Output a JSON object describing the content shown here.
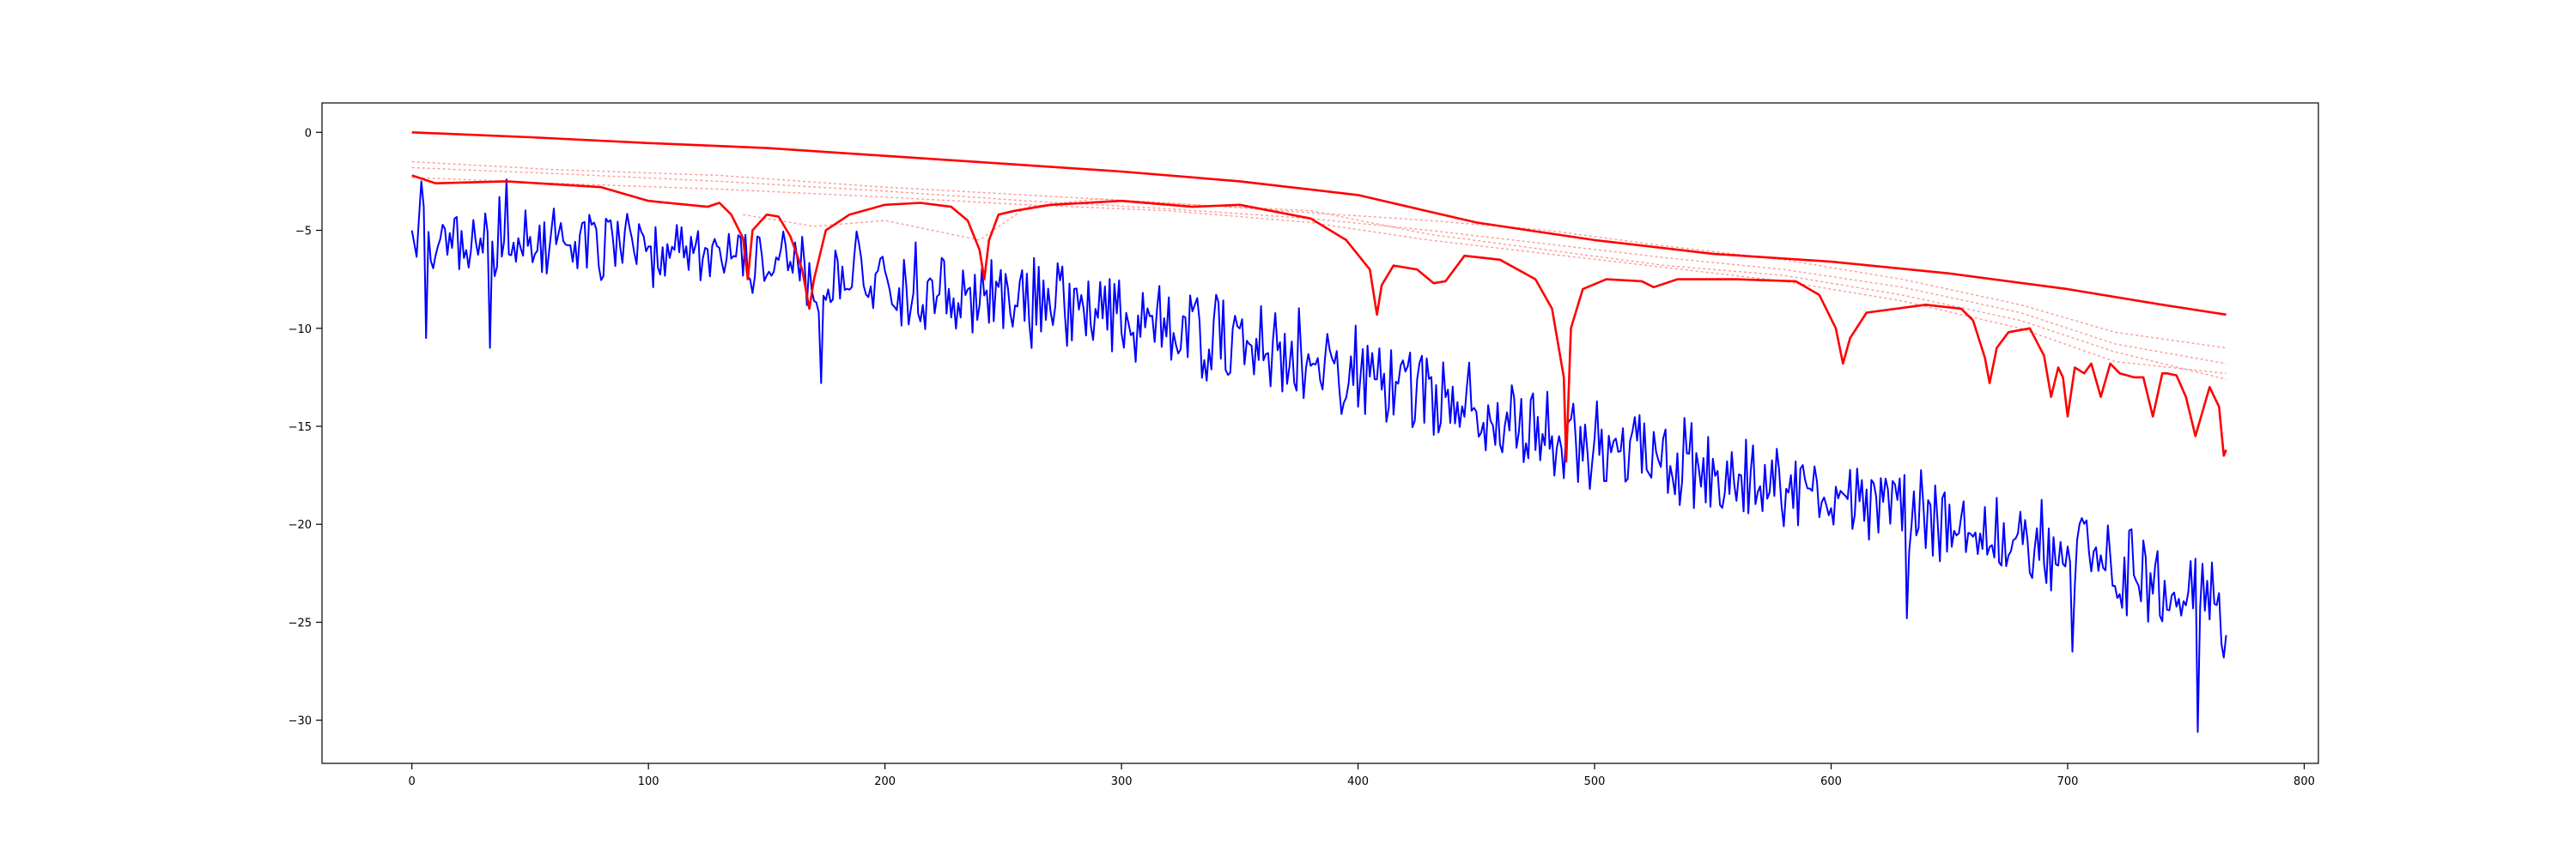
{
  "chart_data": {
    "type": "line",
    "title": "",
    "xlabel": "",
    "ylabel": "",
    "xlim": [
      -38,
      806
    ],
    "ylim": [
      -32.2,
      1.5
    ],
    "grid": false,
    "legend": "none",
    "xticks": [
      0,
      100,
      200,
      300,
      400,
      500,
      600,
      700,
      800
    ],
    "yticks": [
      0,
      -5,
      -10,
      -15,
      -20,
      -25,
      -30
    ],
    "xtick_labels": [
      "0",
      "100",
      "200",
      "300",
      "400",
      "500",
      "600",
      "700",
      "800"
    ],
    "ytick_labels": [
      "0",
      "−5",
      "−10",
      "−15",
      "−20",
      "−25",
      "−30"
    ],
    "colors": {
      "noisy": "#0000ff",
      "upper": "#ff0000",
      "lower": "#ff0000",
      "faint": "#ff9999"
    },
    "series": [
      {
        "style": "blue-noisy",
        "x_start": 0,
        "x_end": 767,
        "n_points": 768,
        "trend_x": [
          0,
          50,
          100,
          150,
          200,
          250,
          300,
          350,
          400,
          450,
          500,
          550,
          600,
          650,
          700,
          767
        ],
        "trend_y": [
          -5.0,
          -5.5,
          -6.0,
          -6.8,
          -7.6,
          -8.4,
          -9.6,
          -10.8,
          -12.2,
          -14.2,
          -16.0,
          -17.2,
          -18.6,
          -19.8,
          -21.5,
          -24.3
        ],
        "spread_y": [
          2.2,
          2.2,
          2.2,
          2.2,
          2.5,
          2.5,
          2.6,
          2.6,
          2.7,
          2.8,
          3.0,
          2.6,
          2.5,
          2.5,
          2.6,
          2.8
        ],
        "extremes": [
          {
            "x": 4,
            "y": -2.5
          },
          {
            "x": 6,
            "y": -10.5
          },
          {
            "x": 33,
            "y": -11.0
          },
          {
            "x": 40,
            "y": -2.4
          },
          {
            "x": 173,
            "y": -12.8
          },
          {
            "x": 488,
            "y": -15.2
          },
          {
            "x": 632,
            "y": -24.8
          },
          {
            "x": 702,
            "y": -26.5
          },
          {
            "x": 755,
            "y": -30.6
          },
          {
            "x": 766,
            "y": -26.8
          }
        ]
      },
      {
        "style": "red-upper-envelope",
        "x": [
          0,
          50,
          100,
          150,
          200,
          250,
          300,
          350,
          400,
          450,
          500,
          550,
          600,
          650,
          700,
          740,
          767
        ],
        "y": [
          0.0,
          -0.25,
          -0.55,
          -0.8,
          -1.2,
          -1.6,
          -2.0,
          -2.5,
          -3.2,
          -4.6,
          -5.5,
          -6.2,
          -6.6,
          -7.2,
          -8.0,
          -8.8,
          -9.3
        ]
      },
      {
        "style": "red-lower-envelope",
        "x": [
          0,
          10,
          40,
          80,
          100,
          125,
          130,
          135,
          140,
          142,
          144,
          150,
          155,
          160,
          165,
          168,
          170,
          175,
          185,
          200,
          215,
          228,
          235,
          240,
          242,
          244,
          248,
          255,
          270,
          300,
          330,
          350,
          380,
          395,
          405,
          408,
          410,
          415,
          425,
          432,
          437,
          445,
          460,
          475,
          482,
          487,
          488,
          490,
          495,
          505,
          520,
          525,
          535,
          560,
          585,
          595,
          602,
          605,
          608,
          615,
          640,
          655,
          660,
          665,
          667,
          670,
          675,
          684,
          690,
          693,
          696,
          698,
          700,
          703,
          707,
          710,
          714,
          718,
          722,
          728,
          732,
          736,
          740,
          742,
          746,
          750,
          754,
          760,
          764,
          766,
          767
        ],
        "y": [
          -2.2,
          -2.6,
          -2.5,
          -2.8,
          -3.5,
          -3.8,
          -3.6,
          -4.2,
          -5.4,
          -7.5,
          -5.0,
          -4.2,
          -4.3,
          -5.3,
          -7.0,
          -9.0,
          -7.5,
          -5.0,
          -4.2,
          -3.7,
          -3.6,
          -3.8,
          -4.5,
          -6.0,
          -7.5,
          -5.5,
          -4.2,
          -4.0,
          -3.7,
          -3.5,
          -3.8,
          -3.7,
          -4.4,
          -5.5,
          -7.0,
          -9.3,
          -7.8,
          -6.8,
          -7.0,
          -7.7,
          -7.6,
          -6.3,
          -6.5,
          -7.5,
          -9.0,
          -12.5,
          -16.8,
          -10.0,
          -8.0,
          -7.5,
          -7.6,
          -7.9,
          -7.5,
          -7.5,
          -7.6,
          -8.3,
          -10.0,
          -11.8,
          -10.5,
          -9.2,
          -8.8,
          -9.0,
          -9.6,
          -11.5,
          -12.8,
          -11.0,
          -10.2,
          -10.0,
          -11.4,
          -13.5,
          -12.0,
          -12.5,
          -14.5,
          -12.0,
          -12.3,
          -11.8,
          -13.5,
          -11.8,
          -12.3,
          -12.5,
          -12.5,
          -14.5,
          -12.3,
          -12.3,
          -12.4,
          -13.5,
          -15.5,
          -13.0,
          -14.0,
          -16.5,
          -16.2
        ]
      },
      {
        "style": "red-faint-dashed",
        "x": [
          0,
          60,
          130,
          200,
          260,
          320,
          380,
          430,
          480,
          530,
          580,
          630,
          680,
          720,
          767
        ],
        "y": [
          -1.5,
          -1.9,
          -2.2,
          -2.8,
          -3.2,
          -3.6,
          -4.1,
          -4.5,
          -5.0,
          -5.8,
          -6.5,
          -7.5,
          -8.8,
          -10.2,
          -11.0
        ]
      },
      {
        "style": "red-faint-dashed",
        "x": [
          0,
          60,
          130,
          200,
          260,
          320,
          380,
          430,
          480,
          530,
          580,
          630,
          680,
          720,
          767
        ],
        "y": [
          -1.8,
          -2.1,
          -2.5,
          -3.0,
          -3.5,
          -3.9,
          -4.4,
          -5.0,
          -5.7,
          -6.4,
          -7.0,
          -7.9,
          -9.2,
          -10.8,
          -11.8
        ]
      },
      {
        "style": "red-faint-dashed",
        "x": [
          0,
          60,
          130,
          200,
          260,
          320,
          380,
          430,
          480,
          530,
          580,
          630,
          680,
          720,
          767
        ],
        "y": [
          -2.3,
          -2.6,
          -2.9,
          -3.3,
          -3.7,
          -4.0,
          -4.6,
          -5.5,
          -6.2,
          -6.9,
          -7.6,
          -8.6,
          -10.0,
          -11.7,
          -12.3
        ]
      },
      {
        "style": "red-faint-dashed",
        "x": [
          140,
          170,
          200,
          240,
          260,
          290,
          330,
          380,
          430,
          480,
          530,
          580,
          630,
          680,
          720,
          767
        ],
        "y": [
          -4.2,
          -4.8,
          -4.5,
          -5.5,
          -3.8,
          -3.4,
          -3.7,
          -4.0,
          -5.2,
          -6.0,
          -6.8,
          -7.3,
          -8.3,
          -9.6,
          -11.2,
          -12.6
        ]
      }
    ]
  }
}
